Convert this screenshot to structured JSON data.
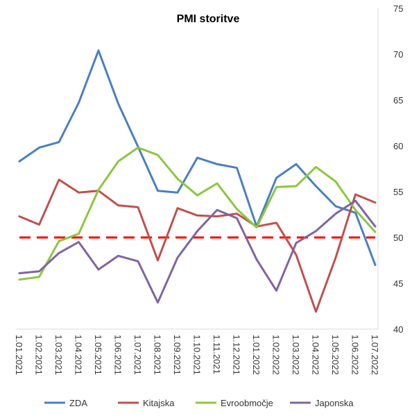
{
  "chart_data": {
    "type": "line",
    "title": "PMI storitve",
    "xlabel": "",
    "ylabel": "",
    "categories": [
      "1.01.2021",
      "1.02.2021",
      "1.03.2021",
      "1.04.2021",
      "1.05.2021",
      "1.06.2021",
      "1.07.2021",
      "1.08.2021",
      "1.09.2021",
      "1.10.2021",
      "1.11.2021",
      "1.12.2021",
      "1.01.2022",
      "1.02.2022",
      "1.03.2022",
      "1.04.2022",
      "1.05.2022",
      "1.06.2022",
      "1.07.2022"
    ],
    "y_ticks": [
      "40",
      "45",
      "50",
      "55",
      "60",
      "65",
      "70",
      "75"
    ],
    "ylim": [
      40,
      75
    ],
    "y_axis_side": "right",
    "grid": false,
    "legend_position": "bottom",
    "reference_line": {
      "value": 50,
      "color": "#ff0000",
      "style": "dashed"
    },
    "series": [
      {
        "name": "ZDA",
        "color": "#4a7fc1",
        "values": [
          58.3,
          59.8,
          60.4,
          64.7,
          70.4,
          64.6,
          59.9,
          55.1,
          54.9,
          58.7,
          58.0,
          57.6,
          51.2,
          56.5,
          58.0,
          55.6,
          53.4,
          52.7,
          47.0
        ]
      },
      {
        "name": "Kitajska",
        "color": "#c0504d",
        "values": [
          52.3,
          51.4,
          56.3,
          54.9,
          55.1,
          53.5,
          53.3,
          47.5,
          53.2,
          52.4,
          52.3,
          52.6,
          51.2,
          51.6,
          48.1,
          41.9,
          47.8,
          54.7,
          53.8
        ]
      },
      {
        "name": "Evroobmočje",
        "color": "#8cc63f",
        "values": [
          45.4,
          45.7,
          49.6,
          50.4,
          55.2,
          58.3,
          59.8,
          59.0,
          56.4,
          54.6,
          55.9,
          53.1,
          51.1,
          55.5,
          55.6,
          57.7,
          56.1,
          53.0,
          50.6
        ]
      },
      {
        "name": "Japonska",
        "color": "#8064a2",
        "values": [
          46.1,
          46.3,
          48.3,
          49.5,
          46.5,
          48.0,
          47.4,
          42.9,
          47.8,
          50.7,
          53.0,
          52.1,
          47.6,
          44.2,
          49.4,
          50.7,
          52.6,
          54.0,
          51.2
        ]
      }
    ]
  }
}
